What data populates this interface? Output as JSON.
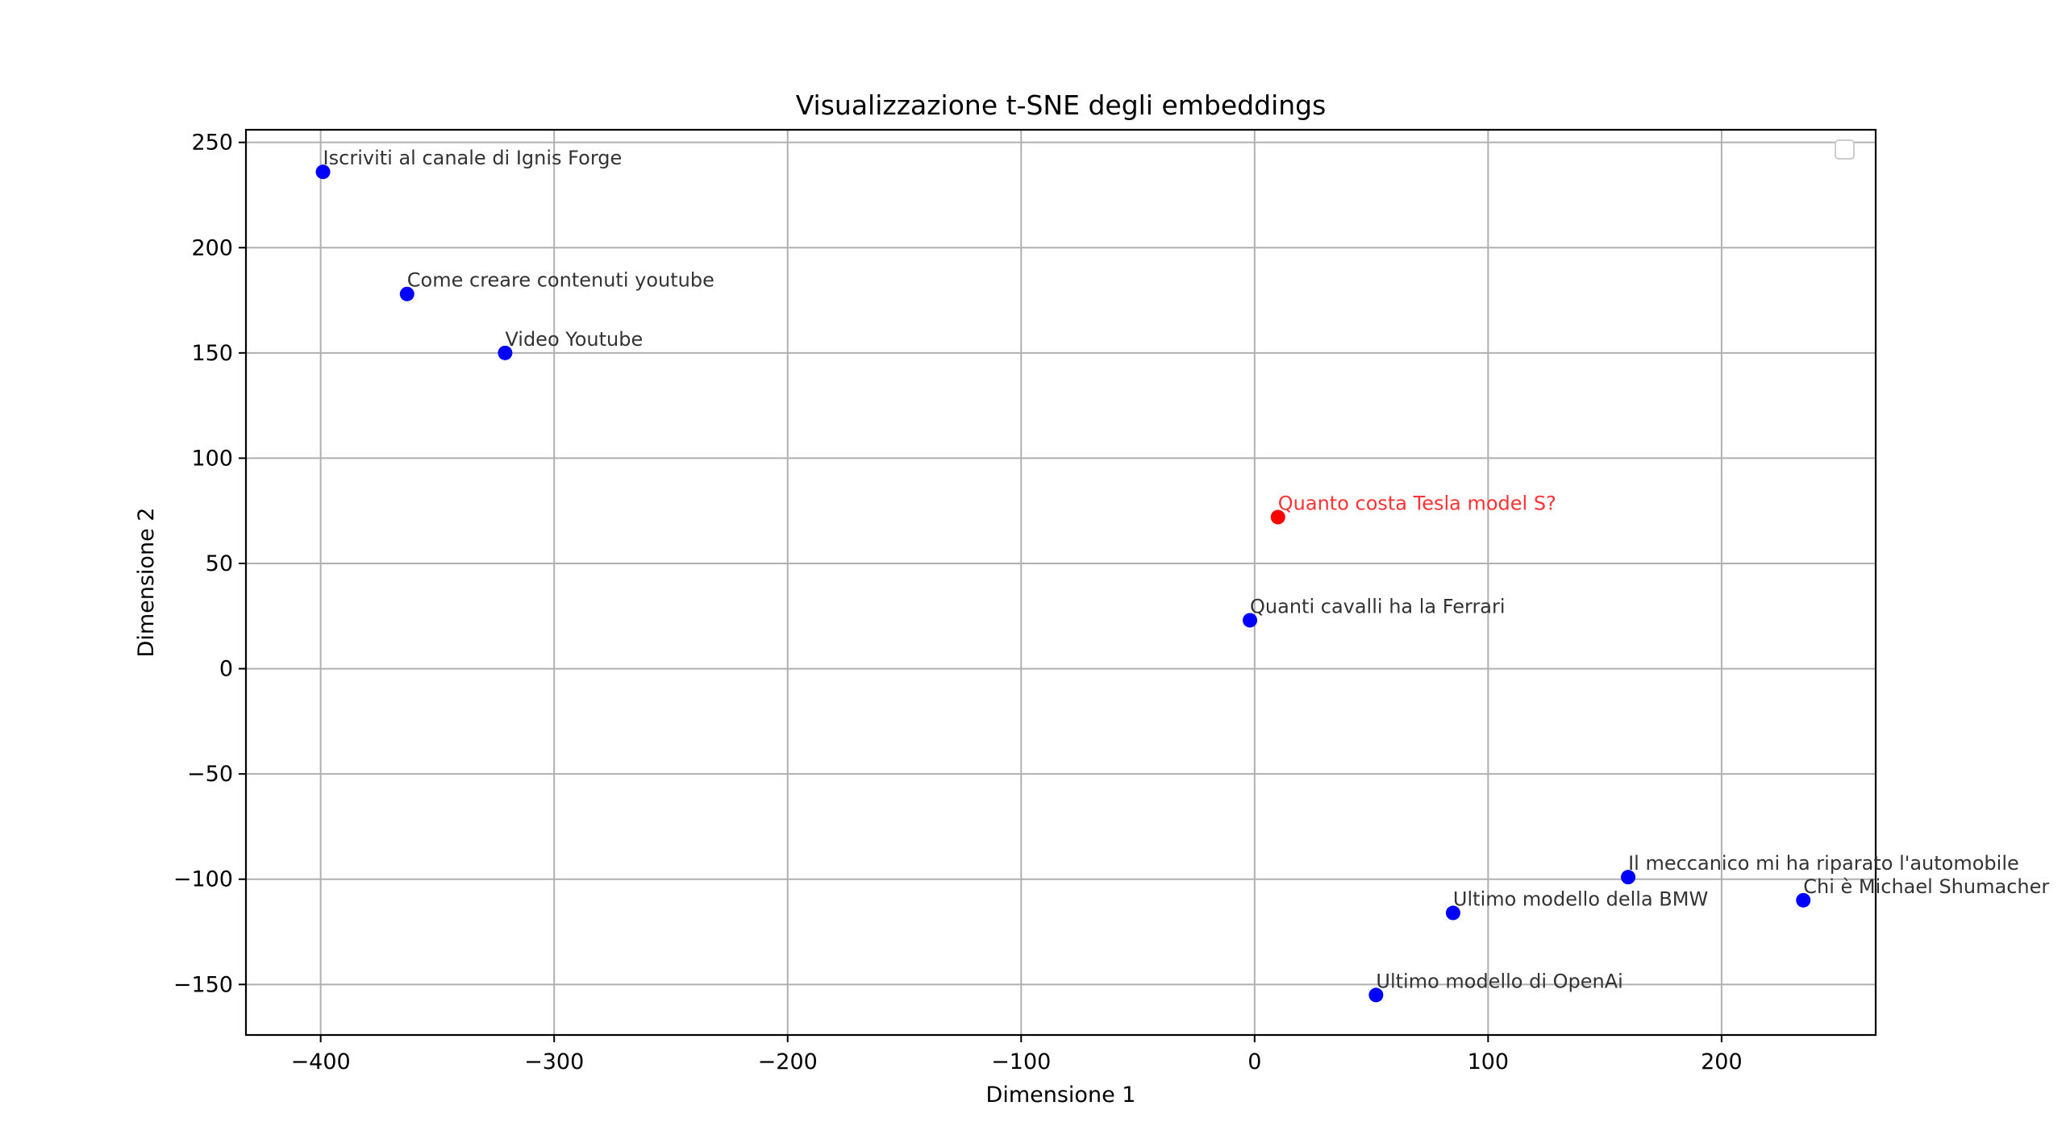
{
  "chart_data": {
    "type": "scatter",
    "title": "Visualizzazione t-SNE degli embeddings",
    "xlabel": "Dimensione 1",
    "ylabel": "Dimensione 2",
    "xlim": [
      -432,
      266
    ],
    "ylim": [
      -174,
      256
    ],
    "grid": true,
    "legend": "top-right (empty)",
    "xticks": [
      -400,
      -300,
      -200,
      -100,
      0,
      100,
      200
    ],
    "xtick_labels": [
      "−400",
      "−300",
      "−200",
      "−100",
      "0",
      "100",
      "200"
    ],
    "yticks": [
      -150,
      -100,
      -50,
      0,
      50,
      100,
      150,
      200,
      250
    ],
    "ytick_labels": [
      "−150",
      "−100",
      "−50",
      "0",
      "50",
      "100",
      "150",
      "200",
      "250"
    ],
    "colors": {
      "document": "#0000ff",
      "query": "#ff0000",
      "document_label": "#333333",
      "query_label": "#ff3333"
    },
    "points": [
      {
        "x": -399,
        "y": 236,
        "label": "Iscriviti al canale di Ignis Forge",
        "group": "document"
      },
      {
        "x": -363,
        "y": 178,
        "label": "Come creare contenuti youtube",
        "group": "document"
      },
      {
        "x": -321,
        "y": 150,
        "label": "Video Youtube",
        "group": "document"
      },
      {
        "x": 10,
        "y": 72,
        "label": "Quanto costa Tesla model S?",
        "group": "query"
      },
      {
        "x": -2,
        "y": 23,
        "label": "Quanti cavalli ha la Ferrari",
        "group": "document"
      },
      {
        "x": 160,
        "y": -99,
        "label": "Il meccanico mi ha riparato l'automobile",
        "group": "document"
      },
      {
        "x": 235,
        "y": -110,
        "label": "Chi è Michael Shumacher",
        "group": "document"
      },
      {
        "x": 85,
        "y": -116,
        "label": "Ultimo modello della BMW",
        "group": "document"
      },
      {
        "x": 52,
        "y": -155,
        "label": "Ultimo modello di OpenAi",
        "group": "document"
      }
    ]
  }
}
